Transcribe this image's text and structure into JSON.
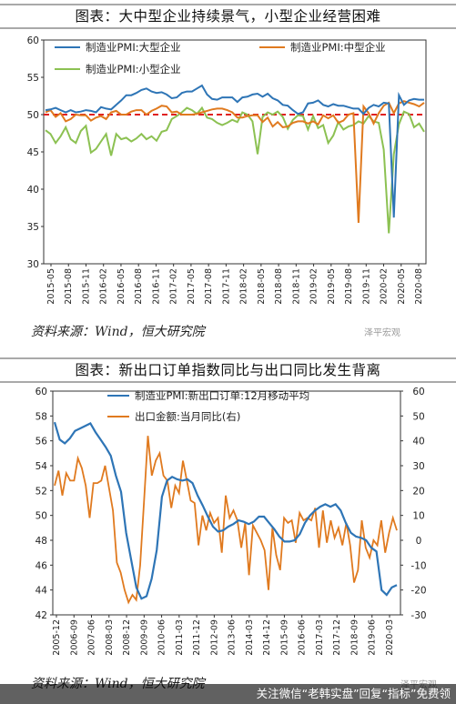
{
  "titles": {
    "chart1": "图表：大中型企业持续景气，小型企业经营困难",
    "chart2": "图表：新出口订单指数同比与出口同比发生背离"
  },
  "sources": {
    "chart1": "资料来源：Wind，恒大研究院",
    "chart2": "资料来源：Wind，恒大研究院"
  },
  "watermark": "泽平宏观",
  "footer_text": "关注微信“老韩实盘”回复“指标”免费领",
  "colors": {
    "blue": "#2e75b6",
    "orange": "#e07a1f",
    "green": "#8cc152",
    "red_dash": "#e02020"
  },
  "chart_data": [
    {
      "type": "line",
      "ylim": [
        30,
        60
      ],
      "yticks": [
        30,
        35,
        40,
        45,
        50,
        55,
        60
      ],
      "xticklabels": [
        "2015-05",
        "2015-08",
        "2015-11",
        "2016-02",
        "2016-05",
        "2016-08",
        "2016-11",
        "2017-02",
        "2017-05",
        "2017-08",
        "2017-11",
        "2018-02",
        "2018-05",
        "2018-08",
        "2018-11",
        "2019-02",
        "2019-05",
        "2019-08",
        "2019-11",
        "2020-02",
        "2020-05",
        "2020-08"
      ],
      "reference_line": 50,
      "series": [
        {
          "name": "制造业PMI:大型企业",
          "color": "#2e75b6",
          "values": [
            50.6,
            50.7,
            50.9,
            50.6,
            50.3,
            50.6,
            50.3,
            50.4,
            50.6,
            50.5,
            50.3,
            51.0,
            50.8,
            50.7,
            51.3,
            51.9,
            52.6,
            52.6,
            52.9,
            53.3,
            53.5,
            53.1,
            52.9,
            53.0,
            52.7,
            52.2,
            52.3,
            52.9,
            53.1,
            53.1,
            53.5,
            53.9,
            52.7,
            52.1,
            52.0,
            52.3,
            52.3,
            52.3,
            51.7,
            52.3,
            52.4,
            52.7,
            52.8,
            52.4,
            52.8,
            52.2,
            51.9,
            51.3,
            51.2,
            50.6,
            50.1,
            50.3,
            51.5,
            51.6,
            51.9,
            51.3,
            51.1,
            51.4,
            51.2,
            51.2,
            51.0,
            50.8,
            50.8,
            50.1,
            50.9,
            51.3,
            51.1,
            51.6,
            51.5,
            36.2,
            52.6,
            51.3,
            51.9,
            52.1,
            52.0,
            52.0
          ]
        },
        {
          "name": "制造业PMI:中型企业",
          "color": "#e07a1f",
          "values": [
            50.3,
            50.6,
            49.7,
            50.2,
            49.1,
            49.4,
            50.0,
            49.9,
            49.9,
            49.2,
            49.6,
            49.8,
            49.4,
            50.3,
            50.5,
            50.0,
            50.0,
            50.4,
            50.6,
            50.6,
            50.0,
            50.5,
            50.8,
            51.2,
            51.1,
            50.3,
            50.4,
            50.0,
            50.0,
            50.0,
            50.1,
            50.3,
            50.5,
            50.7,
            50.8,
            50.8,
            50.6,
            50.3,
            49.6,
            49.6,
            49.8,
            49.9,
            49.9,
            49.0,
            49.6,
            48.4,
            49.0,
            48.3,
            48.4,
            48.9,
            49.1,
            49.1,
            48.8,
            49.1,
            48.7,
            49.9,
            49.5,
            49.9,
            48.9,
            49.2,
            50.0,
            50.2,
            35.5,
            51.1,
            50.2,
            48.8,
            50.2,
            51.2,
            51.6,
            50.2,
            51.5,
            51.8,
            51.6,
            51.4,
            51.1,
            51.6
          ]
        },
        {
          "name": "制造业PMI:小型企业",
          "color": "#8cc152",
          "values": [
            47.9,
            47.4,
            46.2,
            47.1,
            48.3,
            46.7,
            46.2,
            47.8,
            48.5,
            44.9,
            45.4,
            46.4,
            47.4,
            44.5,
            47.4,
            46.7,
            46.9,
            46.4,
            46.8,
            47.4,
            46.7,
            47.1,
            46.5,
            47.7,
            47.9,
            49.4,
            49.8,
            50.3,
            50.9,
            50.6,
            50.1,
            50.9,
            49.6,
            49.4,
            48.9,
            48.6,
            48.9,
            49.3,
            49.0,
            50.3,
            50.0,
            49.1,
            44.7,
            49.7,
            50.3,
            50.0,
            50.4,
            49.7,
            48.1,
            49.3,
            49.9,
            49.8,
            48.0,
            49.8,
            48.2,
            48.6,
            46.2,
            47.2,
            49.0,
            48.0,
            48.4,
            48.6,
            49.1,
            48.8,
            49.8,
            49.1,
            48.9,
            45.3,
            34.1,
            44.7,
            48.7,
            50.4,
            50.1,
            48.3,
            48.8,
            47.7
          ]
        }
      ]
    },
    {
      "type": "line",
      "ylim_left": [
        42,
        60
      ],
      "ylim_right": [
        -30,
        60
      ],
      "yticks_left": [
        42,
        44,
        46,
        48,
        50,
        52,
        54,
        56,
        58,
        60
      ],
      "yticks_right": [
        -30,
        -20,
        -10,
        0,
        10,
        20,
        30,
        40,
        50,
        60
      ],
      "xticklabels": [
        "2005-12",
        "2006-09",
        "2007-06",
        "2008-03",
        "2008-12",
        "2009-09",
        "2010-06",
        "2011-03",
        "2011-12",
        "2012-09",
        "2013-06",
        "2014-03",
        "2014-12",
        "2015-09",
        "2016-06",
        "2017-03",
        "2017-12",
        "2018-09",
        "2019-06",
        "2020-03"
      ],
      "series": [
        {
          "name": "制造业PMI:新出口订单:12月移动平均",
          "color": "#2e75b6",
          "axis": "left",
          "values": [
            57.5,
            56.1,
            55.8,
            56.2,
            56.8,
            57.0,
            57.2,
            57.4,
            56.7,
            56.1,
            55.5,
            54.8,
            53.2,
            51.9,
            48.6,
            46.4,
            44.2,
            43.3,
            43.5,
            44.9,
            47.2,
            51.5,
            52.8,
            53.1,
            52.9,
            52.8,
            52.9,
            52.6,
            51.6,
            50.8,
            49.9,
            49.1,
            48.7,
            48.8,
            49.1,
            49.3,
            49.6,
            49.5,
            49.3,
            49.5,
            49.9,
            49.9,
            49.4,
            48.9,
            48.3,
            47.9,
            47.9,
            48.0,
            48.5,
            49.4,
            50.0,
            50.4,
            50.7,
            50.9,
            50.7,
            50.9,
            50.4,
            49.4,
            48.6,
            48.3,
            48.2,
            48.0,
            47.4,
            47.1,
            44.0,
            43.6,
            44.2,
            44.4
          ]
        },
        {
          "name": "出口金额:当月同比(右)",
          "color": "#e07a1f",
          "axis": "right",
          "values": [
            22,
            28,
            18,
            27,
            24,
            24,
            33,
            29,
            22,
            9,
            23,
            23,
            24,
            30,
            21,
            12,
            -9,
            -13,
            -20,
            -25,
            -22,
            -24,
            -10,
            16,
            42,
            26,
            32,
            35,
            26,
            24,
            13,
            22,
            19,
            32,
            24,
            16,
            15,
            -2,
            10,
            4,
            11,
            7,
            9,
            -5,
            18,
            9,
            12,
            8,
            -3,
            7,
            -14,
            6,
            3,
            0,
            -4,
            -20,
            5,
            -6,
            -12,
            9,
            7,
            8,
            -1,
            11,
            8,
            9,
            8,
            13,
            -3,
            12,
            -1,
            8,
            1,
            5,
            -2,
            7,
            -2,
            -17,
            -12,
            8,
            -3,
            -7,
            0,
            -2,
            8,
            -5,
            3,
            9,
            4
          ]
        }
      ]
    }
  ]
}
